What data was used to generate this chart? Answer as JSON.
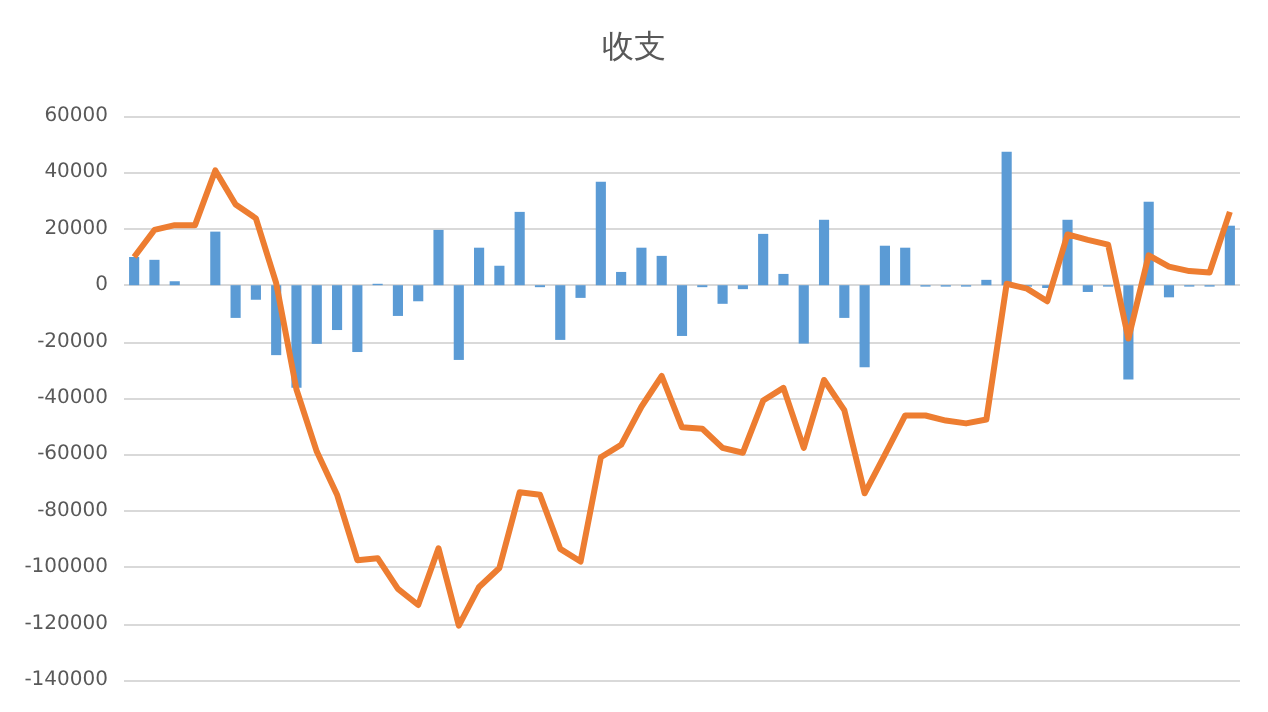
{
  "chart_data": {
    "type": "bar",
    "title": "收支",
    "categories": [
      null,
      null,
      null,
      null,
      null,
      null,
      null,
      null,
      null,
      null,
      null,
      null,
      null,
      null,
      null,
      null,
      null,
      null,
      null,
      null,
      null,
      null,
      null,
      null,
      null,
      null,
      null,
      null,
      null,
      null,
      null,
      null,
      null,
      null,
      null,
      null,
      null,
      null,
      null,
      null,
      null,
      null,
      null,
      null,
      null,
      null,
      null,
      null,
      null,
      null,
      null,
      null,
      null,
      null,
      null
    ],
    "series": [
      {
        "color": "#5b9bd5",
        "values": [
          10000,
          9000,
          1400,
          0,
          19000,
          -11600,
          -5200,
          -24800,
          -36400,
          -20800,
          -15900,
          -23700,
          500,
          -10900,
          -5700,
          19600,
          -26500,
          13300,
          6900,
          26000,
          -700,
          -19400,
          -4500,
          36700,
          4700,
          13300,
          10400,
          -18000,
          -700,
          -6600,
          -1400,
          18200,
          4000,
          -20700,
          23200,
          -11600,
          -29100,
          14000,
          13300,
          -500,
          -500,
          -500,
          1900,
          47300,
          -500,
          -1000,
          23200,
          -2400,
          -500,
          -33400,
          29600,
          -4300,
          -500,
          -500,
          21100
        ]
      },
      {
        "type": "line",
        "color": "#ed7d31",
        "values": [
          10000,
          19600,
          21300,
          21300,
          40700,
          28600,
          23700,
          700,
          -37000,
          -59000,
          -74300,
          -97500,
          -96800,
          -107700,
          -113400,
          -93300,
          -120700,
          -107000,
          -100300,
          -73400,
          -74300,
          -93500,
          -98000,
          -61000,
          -56600,
          -43100,
          -32200,
          -50400,
          -50900,
          -57700,
          -59400,
          -40900,
          -36400,
          -57700,
          -33600,
          -44300,
          -73800,
          -60100,
          -46200,
          -46200,
          -48000,
          -49000,
          -47600,
          500,
          -1200,
          -5700,
          18000,
          16100,
          14400,
          -18900,
          10600,
          6600,
          5000,
          4500,
          26000
        ]
      }
    ],
    "ylim": [
      -140000,
      60000
    ],
    "yticks": [
      -140000,
      -120000,
      -100000,
      -80000,
      -60000,
      -40000,
      -20000,
      0,
      20000,
      40000,
      60000
    ],
    "grid": "y",
    "marker": "none",
    "line_style": "solid"
  }
}
